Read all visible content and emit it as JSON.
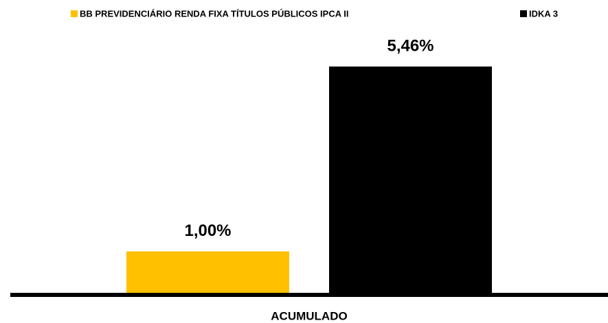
{
  "chart_data": {
    "type": "bar",
    "categories": [
      "ACUMULADO"
    ],
    "series": [
      {
        "name": "BB PREVIDENCIÁRIO RENDA FIXA TÍTULOS PÚBLICOS IPCA II",
        "color": "#FFC000",
        "values": [
          1.0
        ],
        "value_labels": [
          "1,00%"
        ]
      },
      {
        "name": "IDKA 3",
        "color": "#000000",
        "values": [
          5.46
        ],
        "value_labels": [
          "5,46%"
        ]
      }
    ]
  }
}
